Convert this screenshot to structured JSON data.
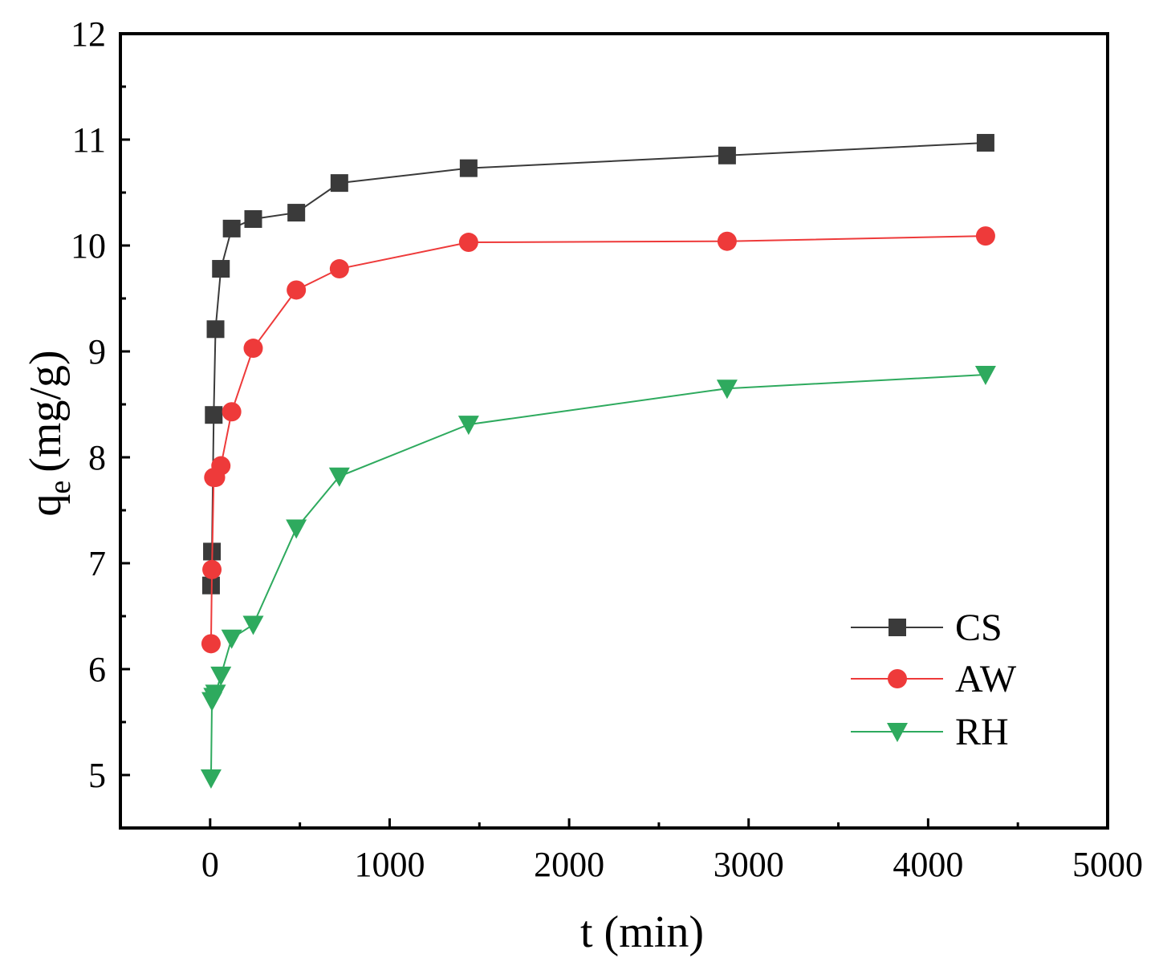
{
  "chart_data": {
    "type": "line",
    "title": "",
    "xlabel": "t (min)",
    "ylabel_main": "q",
    "ylabel_sub": "e",
    "ylabel_unit": "(mg/g)",
    "xlim": [
      -500,
      5000
    ],
    "ylim": [
      4.5,
      12
    ],
    "xticks": [
      0,
      1000,
      2000,
      3000,
      4000,
      5000
    ],
    "xtick_labels": [
      "0",
      "1000",
      "2000",
      "3000",
      "4000",
      "5000"
    ],
    "yticks": [
      5,
      6,
      7,
      8,
      9,
      10,
      11,
      12
    ],
    "ytick_labels": [
      "5",
      "6",
      "7",
      "8",
      "9",
      "10",
      "11",
      "12"
    ],
    "grid": false,
    "legend_position": "bottom-right",
    "series": [
      {
        "name": "CS",
        "color": "#3a3a3a",
        "marker": "square",
        "x": [
          5,
          10,
          20,
          30,
          60,
          120,
          240,
          480,
          720,
          1440,
          2880,
          4320
        ],
        "y": [
          6.79,
          7.11,
          8.4,
          9.21,
          9.78,
          10.16,
          10.25,
          10.31,
          10.59,
          10.73,
          10.85,
          10.97
        ]
      },
      {
        "name": "AW",
        "color": "#ee3a3a",
        "marker": "circle",
        "x": [
          5,
          10,
          20,
          30,
          60,
          120,
          240,
          480,
          720,
          1440,
          2880,
          4320
        ],
        "y": [
          6.24,
          6.94,
          7.81,
          7.81,
          7.92,
          8.43,
          9.03,
          9.58,
          9.78,
          10.03,
          10.04,
          10.09
        ]
      },
      {
        "name": "RH",
        "color": "#2eaa5e",
        "marker": "triangle-down",
        "x": [
          5,
          10,
          20,
          30,
          60,
          120,
          240,
          480,
          720,
          1440,
          2880,
          4320
        ],
        "y": [
          4.97,
          5.7,
          5.74,
          5.77,
          5.94,
          6.29,
          6.42,
          7.33,
          7.82,
          8.31,
          8.65,
          8.78
        ]
      }
    ]
  }
}
